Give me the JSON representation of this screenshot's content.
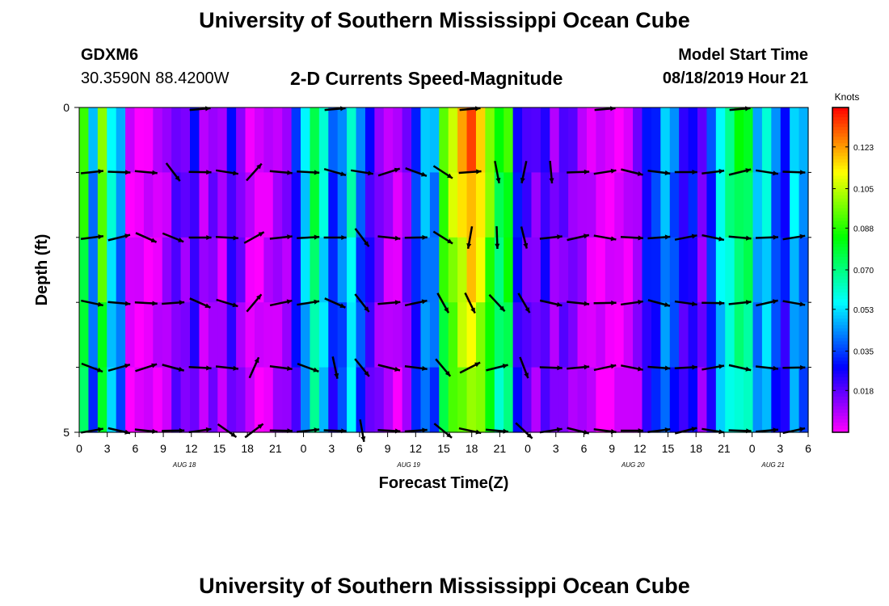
{
  "header": {
    "title_top": "University of Southern Mississippi Ocean Cube",
    "title_bottom": "University of Southern Mississippi Ocean Cube",
    "station_id": "GDXM6",
    "coordinates": "30.3590N 88.4200W",
    "subtitle": "2-D Currents Speed-Magnitude",
    "model_start_label": "Model Start Time",
    "model_start_value": "08/18/2019 Hour 21"
  },
  "chart_data": {
    "type": "heatmap",
    "title": "2-D Currents Speed-Magnitude",
    "xlabel": "Forecast Time(Z)",
    "ylabel": "Depth (ft)",
    "x_tick_labels": [
      "0",
      "3",
      "6",
      "9",
      "12",
      "15",
      "18",
      "21",
      "0",
      "3",
      "6",
      "9",
      "12",
      "15",
      "18",
      "21",
      "0",
      "3",
      "6",
      "9",
      "12",
      "15",
      "18",
      "21",
      "0",
      "3",
      "6"
    ],
    "day_labels": [
      "AUG 18",
      "AUG 19",
      "AUG 20",
      "AUG 21"
    ],
    "day_label_tick_index": [
      3.75,
      11.75,
      19.75,
      24.75
    ],
    "y_tick_labels": [
      "0",
      "5"
    ],
    "ylim": [
      0,
      5
    ],
    "colorbar": {
      "unit": "Knots",
      "tick_labels": [
        "0.123",
        "0.105",
        "0.088",
        "0.070",
        "0.053",
        "0.035",
        "0.018"
      ],
      "tick_values": [
        0.123,
        0.105,
        0.088,
        0.07,
        0.053,
        0.035,
        0.018
      ],
      "range": [
        0.0,
        0.14
      ]
    },
    "time_steps_hours": 78,
    "depth_levels_ft": [
      0,
      1,
      2,
      3,
      4,
      5
    ],
    "column_speed_knots": [
      0.09,
      0.045,
      0.1,
      0.06,
      0.045,
      0.003,
      0.002,
      0.003,
      0.005,
      0.01,
      0.02,
      0.015,
      0.025,
      0.008,
      0.015,
      0.008,
      0.025,
      0.015,
      0.004,
      0.002,
      0.006,
      0.01,
      0.012,
      0.03,
      0.055,
      0.08,
      0.06,
      0.035,
      0.045,
      0.065,
      0.04,
      0.025,
      0.015,
      0.008,
      0.005,
      0.015,
      0.035,
      0.05,
      0.045,
      0.095,
      0.11,
      0.12,
      0.13,
      0.12,
      0.1,
      0.08,
      0.09,
      0.03,
      0.02,
      0.015,
      0.025,
      0.012,
      0.018,
      0.015,
      0.01,
      0.005,
      0.003,
      0.002,
      0.003,
      0.005,
      0.012,
      0.03,
      0.035,
      0.05,
      0.04,
      0.025,
      0.03,
      0.015,
      0.035,
      0.06,
      0.07,
      0.08,
      0.08,
      0.05,
      0.06,
      0.04,
      0.03,
      0.055,
      0.045
    ],
    "arrows_scale_note": "vector arrows indicate current direction",
    "arrow_angles_deg": [
      [
        0,
        0,
        0,
        0,
        0,
        0,
        0,
        0,
        0,
        0,
        0,
        0,
        0,
        0,
        0,
        0,
        0,
        0,
        0,
        0,
        0,
        0,
        0,
        0,
        0,
        0,
        0
      ],
      [
        10,
        -5,
        -15,
        -40,
        5,
        -10,
        40,
        10,
        5,
        -15,
        -15,
        5,
        -10,
        -30,
        0,
        -90,
        -90,
        -80,
        0,
        0,
        0,
        0,
        0,
        0,
        0,
        0,
        0
      ],
      [
        0,
        0,
        -15,
        -20,
        -5,
        -15,
        40,
        10,
        0,
        -10,
        -40,
        0,
        0,
        -40,
        -85,
        -80,
        -75,
        0,
        0,
        0,
        0,
        0,
        0,
        0,
        0,
        0,
        0
      ],
      [
        0,
        0,
        -5,
        -5,
        -10,
        -10,
        50,
        5,
        -5,
        -15,
        -50,
        0,
        0,
        -50,
        -60,
        -50,
        -70,
        0,
        0,
        0,
        0,
        0,
        0,
        0,
        0,
        0,
        0
      ],
      [
        -20,
        10,
        5,
        -5,
        0,
        -10,
        55,
        5,
        -15,
        -80,
        -60,
        0,
        0,
        -50,
        20,
        0,
        -60,
        0,
        0,
        0,
        0,
        0,
        0,
        0,
        0,
        0,
        0
      ],
      [
        0,
        0,
        0,
        0,
        0,
        -20,
        45,
        0,
        0,
        -15,
        -70,
        0,
        0,
        -50,
        0,
        0,
        -45,
        0,
        0,
        0,
        0,
        0,
        0,
        0,
        0,
        0,
        0
      ]
    ]
  }
}
